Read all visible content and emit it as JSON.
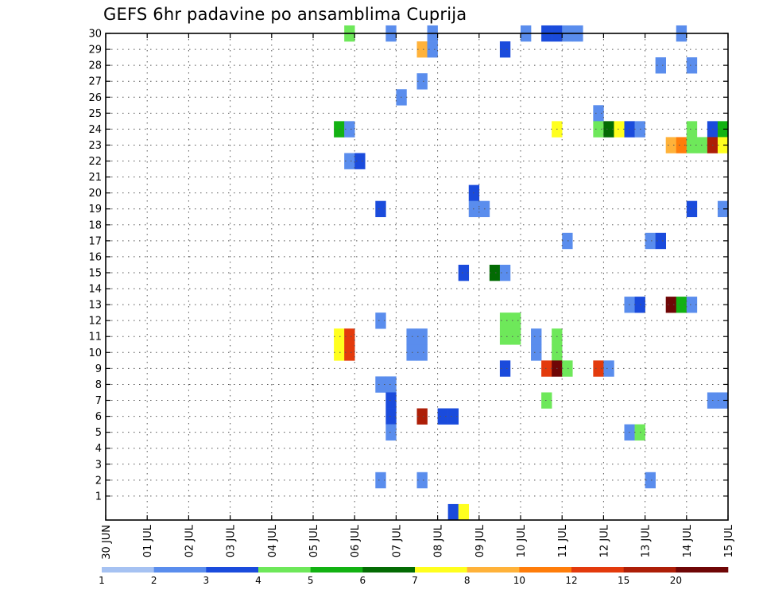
{
  "chart_data": {
    "type": "heatmap",
    "title": "GEFS 6hr padavine po ansamblima Cuprija",
    "xlabel": "",
    "ylabel": "",
    "x_ticks": [
      "30 JUN",
      "01 JUL",
      "02 JUL",
      "03 JUL",
      "04 JUL",
      "05 JUL",
      "06 JUL",
      "07 JUL",
      "08 JUL",
      "09 JUL",
      "10 JUL",
      "11 JUL",
      "12 JUL",
      "13 JUL",
      "14 JUL",
      "15 JUL"
    ],
    "x_range_days": [
      0,
      15
    ],
    "y_ticks": [
      1,
      2,
      3,
      4,
      5,
      6,
      7,
      8,
      9,
      10,
      11,
      12,
      13,
      14,
      15,
      16,
      17,
      18,
      19,
      20,
      21,
      22,
      23,
      24,
      25,
      26,
      27,
      28,
      29,
      30
    ],
    "y_range": [
      0,
      30
    ],
    "grid": true,
    "colorbar": {
      "labels": [
        "1",
        "2",
        "3",
        "4",
        "5",
        "6",
        "7",
        "8",
        "10",
        "12",
        "15",
        "20"
      ],
      "colors": [
        "#a6c2f2",
        "#5a8ded",
        "#1a4bdc",
        "#6ee85a",
        "#12b212",
        "#036b03",
        "#ffff1e",
        "#ffb23a",
        "#ff7d0a",
        "#e33a0c",
        "#ad1e07",
        "#6f0606"
      ]
    },
    "cells": [
      {
        "t": 5.75,
        "y": 30,
        "v": 4
      },
      {
        "t": 6.75,
        "y": 30,
        "v": 2
      },
      {
        "t": 7.75,
        "y": 30,
        "v": 2
      },
      {
        "t": 10.0,
        "y": 30,
        "v": 2
      },
      {
        "t": 10.5,
        "y": 30,
        "v": 3
      },
      {
        "t": 10.75,
        "y": 30,
        "v": 3
      },
      {
        "t": 11.0,
        "y": 30,
        "v": 2
      },
      {
        "t": 11.25,
        "y": 30,
        "v": 2
      },
      {
        "t": 13.75,
        "y": 30,
        "v": 2
      },
      {
        "t": 7.5,
        "y": 29,
        "v": 8
      },
      {
        "t": 7.75,
        "y": 29,
        "v": 2
      },
      {
        "t": 9.5,
        "y": 29,
        "v": 3
      },
      {
        "t": 13.25,
        "y": 28,
        "v": 2
      },
      {
        "t": 14.0,
        "y": 28,
        "v": 2
      },
      {
        "t": 7.5,
        "y": 27,
        "v": 2
      },
      {
        "t": 7.0,
        "y": 26,
        "v": 2
      },
      {
        "t": 11.75,
        "y": 25,
        "v": 2
      },
      {
        "t": 5.5,
        "y": 24,
        "v": 5
      },
      {
        "t": 5.75,
        "y": 24,
        "v": 2
      },
      {
        "t": 10.75,
        "y": 24,
        "v": 7
      },
      {
        "t": 11.75,
        "y": 24,
        "v": 4
      },
      {
        "t": 12.0,
        "y": 24,
        "v": 6
      },
      {
        "t": 12.25,
        "y": 24,
        "v": 7
      },
      {
        "t": 12.5,
        "y": 24,
        "v": 3
      },
      {
        "t": 12.75,
        "y": 24,
        "v": 2
      },
      {
        "t": 14.0,
        "y": 24,
        "v": 4
      },
      {
        "t": 14.5,
        "y": 24,
        "v": 3
      },
      {
        "t": 14.75,
        "y": 24,
        "v": 5
      },
      {
        "t": 13.5,
        "y": 23,
        "v": 8
      },
      {
        "t": 13.75,
        "y": 23,
        "v": 10
      },
      {
        "t": 14.0,
        "y": 23,
        "v": 4
      },
      {
        "t": 14.25,
        "y": 23,
        "v": 4
      },
      {
        "t": 14.5,
        "y": 23,
        "v": 15
      },
      {
        "t": 14.75,
        "y": 23,
        "v": 7
      },
      {
        "t": 5.75,
        "y": 22,
        "v": 2
      },
      {
        "t": 6.0,
        "y": 22,
        "v": 3
      },
      {
        "t": 8.75,
        "y": 20,
        "v": 3
      },
      {
        "t": 6.5,
        "y": 19,
        "v": 3
      },
      {
        "t": 8.75,
        "y": 19,
        "v": 2
      },
      {
        "t": 9.0,
        "y": 19,
        "v": 2
      },
      {
        "t": 14.0,
        "y": 19,
        "v": 3
      },
      {
        "t": 14.75,
        "y": 19,
        "v": 2
      },
      {
        "t": 11.0,
        "y": 17,
        "v": 2
      },
      {
        "t": 13.0,
        "y": 17,
        "v": 2
      },
      {
        "t": 13.25,
        "y": 17,
        "v": 3
      },
      {
        "t": 8.5,
        "y": 15,
        "v": 3
      },
      {
        "t": 9.25,
        "y": 15,
        "v": 6
      },
      {
        "t": 9.5,
        "y": 15,
        "v": 2
      },
      {
        "t": 12.5,
        "y": 13,
        "v": 2
      },
      {
        "t": 12.75,
        "y": 13,
        "v": 3
      },
      {
        "t": 13.5,
        "y": 13,
        "v": 20
      },
      {
        "t": 13.75,
        "y": 13,
        "v": 5
      },
      {
        "t": 14.0,
        "y": 13,
        "v": 2
      },
      {
        "t": 6.5,
        "y": 12,
        "v": 2
      },
      {
        "t": 9.5,
        "y": 12,
        "v": 4
      },
      {
        "t": 9.75,
        "y": 12,
        "v": 4
      },
      {
        "t": 9.5,
        "y": 11,
        "v": 4
      },
      {
        "t": 9.75,
        "y": 11,
        "v": 4
      },
      {
        "t": 5.5,
        "y": 11,
        "v": 7
      },
      {
        "t": 5.75,
        "y": 11,
        "v": 12
      },
      {
        "t": 7.25,
        "y": 11,
        "v": 2
      },
      {
        "t": 7.5,
        "y": 11,
        "v": 2
      },
      {
        "t": 10.25,
        "y": 11,
        "v": 2
      },
      {
        "t": 10.75,
        "y": 11,
        "v": 4
      },
      {
        "t": 5.5,
        "y": 10,
        "v": 7
      },
      {
        "t": 5.75,
        "y": 10,
        "v": 12
      },
      {
        "t": 7.25,
        "y": 10,
        "v": 2
      },
      {
        "t": 7.5,
        "y": 10,
        "v": 2
      },
      {
        "t": 10.25,
        "y": 10,
        "v": 2
      },
      {
        "t": 10.75,
        "y": 10,
        "v": 4
      },
      {
        "t": 9.5,
        "y": 9,
        "v": 3
      },
      {
        "t": 10.5,
        "y": 9,
        "v": 12
      },
      {
        "t": 10.75,
        "y": 9,
        "v": 20
      },
      {
        "t": 11.0,
        "y": 9,
        "v": 4
      },
      {
        "t": 11.75,
        "y": 9,
        "v": 12
      },
      {
        "t": 12.0,
        "y": 9,
        "v": 2
      },
      {
        "t": 6.5,
        "y": 8,
        "v": 2
      },
      {
        "t": 6.75,
        "y": 8,
        "v": 2
      },
      {
        "t": 6.75,
        "y": 7,
        "v": 3
      },
      {
        "t": 10.5,
        "y": 7,
        "v": 4
      },
      {
        "t": 14.5,
        "y": 7,
        "v": 2
      },
      {
        "t": 14.75,
        "y": 7,
        "v": 2
      },
      {
        "t": 6.75,
        "y": 6,
        "v": 3
      },
      {
        "t": 7.5,
        "y": 6,
        "v": 15
      },
      {
        "t": 8.0,
        "y": 6,
        "v": 3
      },
      {
        "t": 8.25,
        "y": 6,
        "v": 3
      },
      {
        "t": 6.75,
        "y": 5,
        "v": 2
      },
      {
        "t": 12.5,
        "y": 5,
        "v": 2
      },
      {
        "t": 12.75,
        "y": 5,
        "v": 4
      },
      {
        "t": 6.5,
        "y": 2,
        "v": 2
      },
      {
        "t": 7.5,
        "y": 2,
        "v": 2
      },
      {
        "t": 13.0,
        "y": 2,
        "v": 2
      },
      {
        "t": 8.25,
        "y": 0,
        "v": 3
      },
      {
        "t": 8.5,
        "y": 0,
        "v": 7
      }
    ]
  }
}
